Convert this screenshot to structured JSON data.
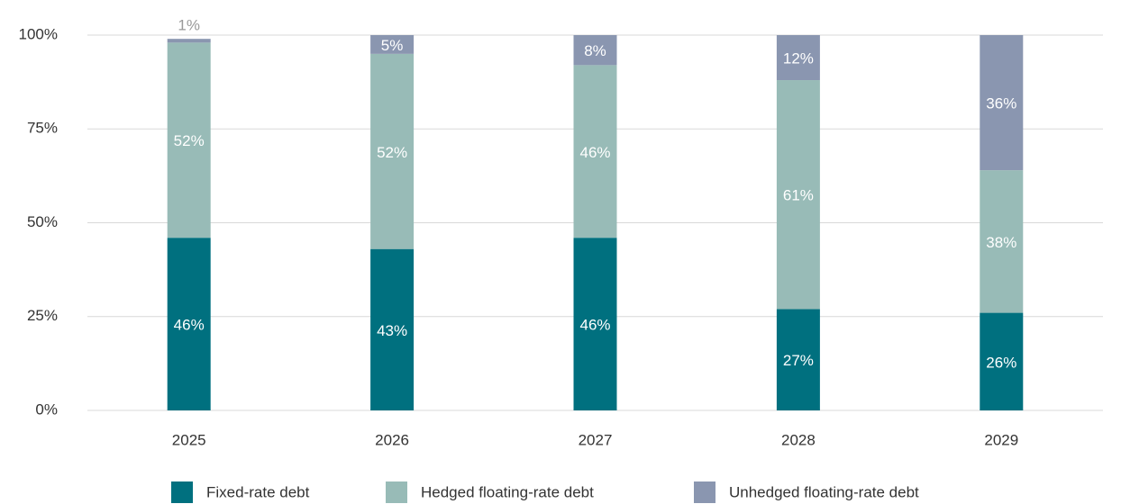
{
  "chart_data": {
    "type": "stacked_bar",
    "categories": [
      "2025",
      "2026",
      "2027",
      "2028",
      "2029"
    ],
    "series": [
      {
        "name": "Fixed-rate debt",
        "color": "#00707f",
        "values": [
          46,
          43,
          46,
          27,
          26
        ],
        "value_labels": [
          "46%",
          "43%",
          "46%",
          "27%",
          "26%"
        ]
      },
      {
        "name": "Hedged floating-rate debt",
        "color": "#98bbb7",
        "values": [
          52,
          52,
          46,
          61,
          38
        ],
        "value_labels": [
          "52%",
          "52%",
          "46%",
          "61%",
          "38%"
        ]
      },
      {
        "name": "Unhedged floating-rate debt",
        "color": "#8a96b0",
        "values": [
          1,
          5,
          8,
          12,
          36
        ],
        "value_labels": [
          "1%",
          "5%",
          "8%",
          "12%",
          "36%"
        ]
      }
    ],
    "ylim": [
      0,
      100
    ],
    "yticks": [
      {
        "value": 0,
        "label": "0%"
      },
      {
        "value": 25,
        "label": "25%"
      },
      {
        "value": 50,
        "label": "50%"
      },
      {
        "value": 75,
        "label": "75%"
      },
      {
        "value": 100,
        "label": "100%"
      }
    ],
    "grid": true,
    "legend": "bottom"
  }
}
